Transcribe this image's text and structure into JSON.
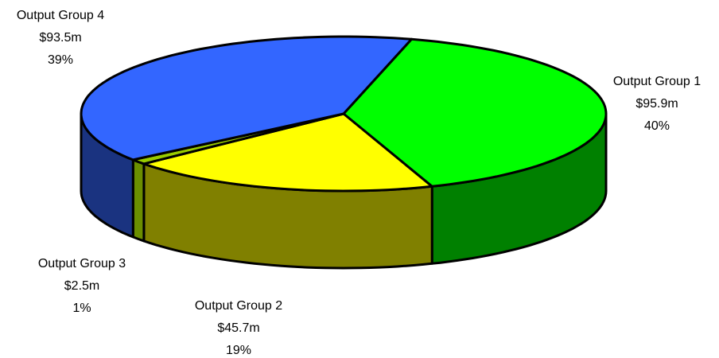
{
  "chart_data": {
    "type": "pie3d",
    "categories": [
      "Output Group 1",
      "Output Group 2",
      "Output Group 3",
      "Output Group 4"
    ],
    "values": [
      95.9,
      45.7,
      2.5,
      93.5
    ],
    "value_labels": [
      "$95.9m",
      "$45.7m",
      "$2.5m",
      "$93.5m"
    ],
    "percent_labels": [
      "40%",
      "19%",
      "1%",
      "39%"
    ],
    "colors": [
      "#00ff00",
      "#ffff00",
      "#99cc00",
      "#3366ff"
    ],
    "side_colors": [
      "#008000",
      "#808000",
      "#6b8e00",
      "#1a3380"
    ]
  }
}
